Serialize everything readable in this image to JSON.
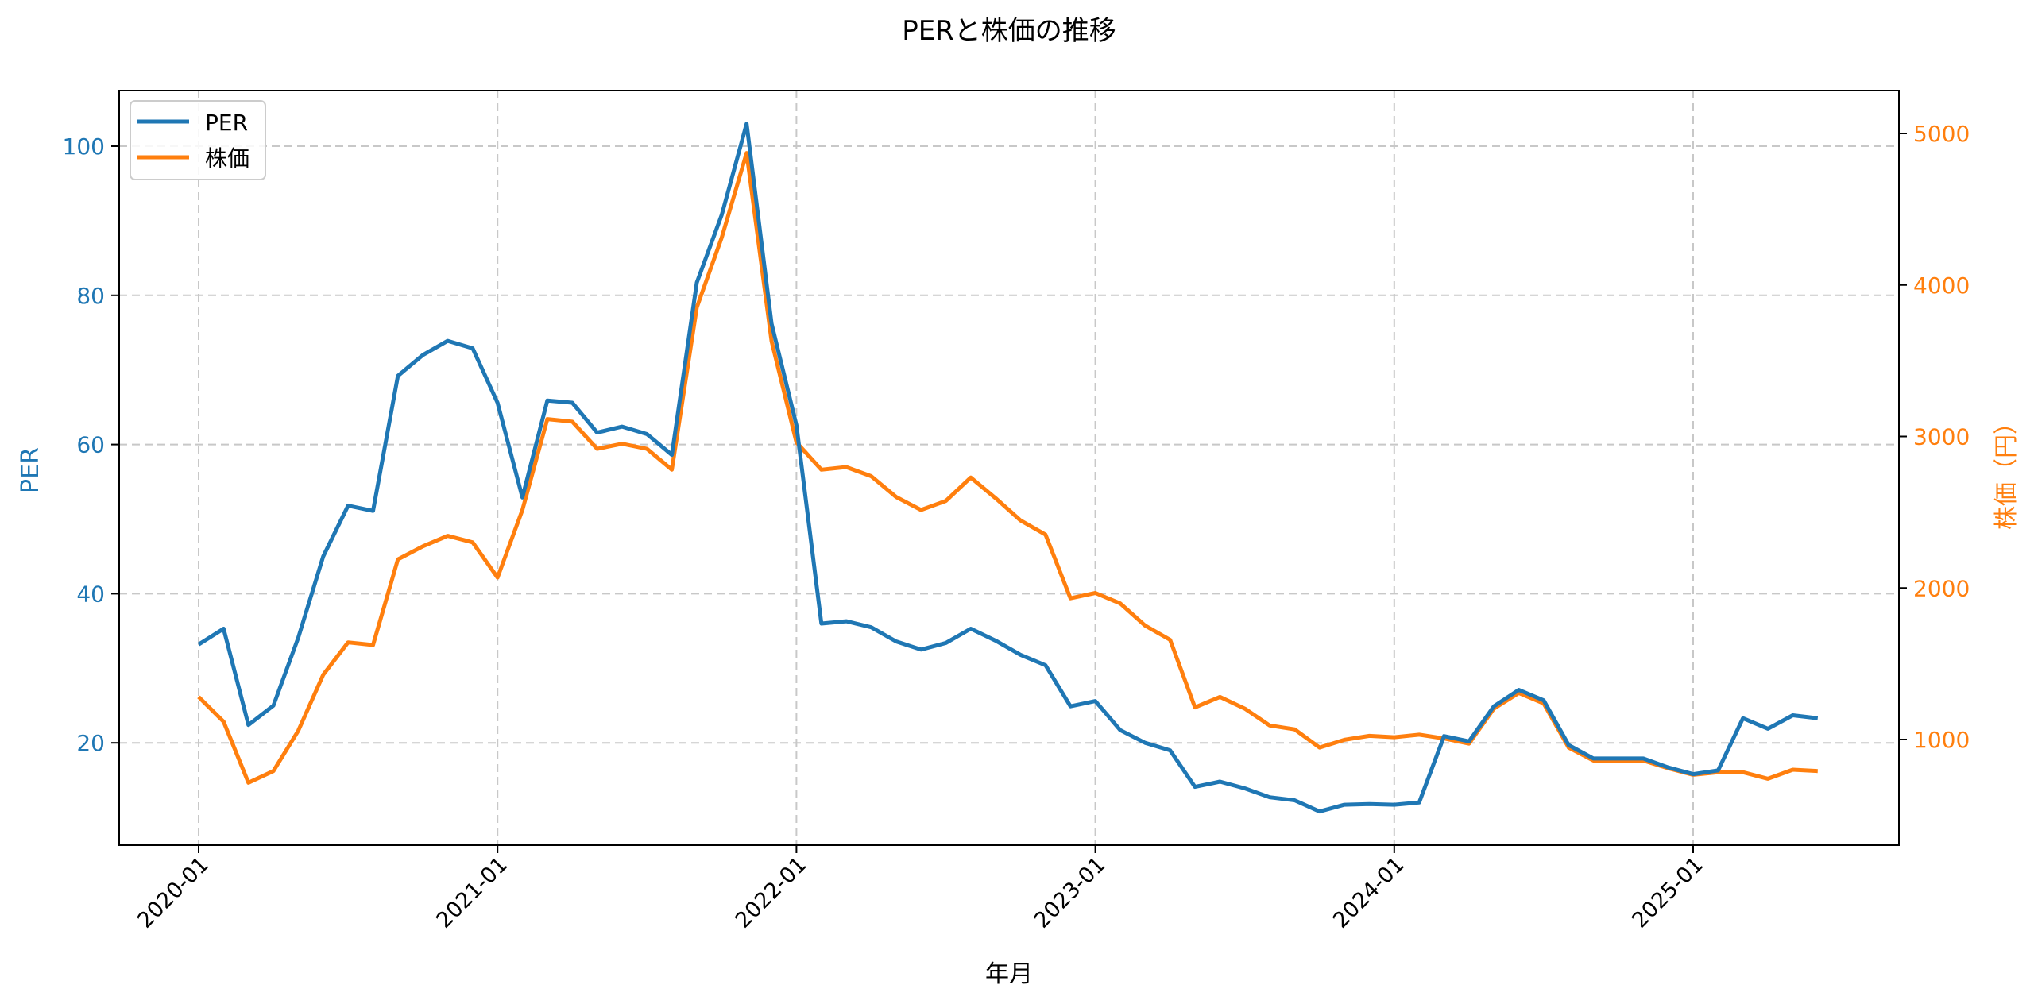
{
  "chart_data": {
    "type": "line",
    "title": "PERと株価の推移",
    "xlabel": "年月",
    "ylabel": "PER",
    "ylabel_right": "株価（円）",
    "ylim": [
      6,
      108
    ],
    "ylim_right": [
      300,
      5300
    ],
    "yticks": [
      20,
      40,
      60,
      80,
      100
    ],
    "yticks_right": [
      1000,
      2000,
      3000,
      4000,
      5000
    ],
    "xticks": [
      "2020-01",
      "2021-01",
      "2022-01",
      "2023-01",
      "2024-01",
      "2025-01"
    ],
    "grid": true,
    "legend_position": "upper left",
    "colors": {
      "PER": "#1f77b4",
      "株価": "#ff7f0e"
    },
    "x": [
      "2020-01",
      "2020-02",
      "2020-03",
      "2020-04",
      "2020-05",
      "2020-06",
      "2020-07",
      "2020-08",
      "2020-09",
      "2020-10",
      "2020-11",
      "2020-12",
      "2021-01",
      "2021-02",
      "2021-03",
      "2021-04",
      "2021-05",
      "2021-06",
      "2021-07",
      "2021-08",
      "2021-09",
      "2021-10",
      "2021-11",
      "2021-12",
      "2022-01",
      "2022-02",
      "2022-03",
      "2022-04",
      "2022-05",
      "2022-06",
      "2022-07",
      "2022-08",
      "2022-09",
      "2022-10",
      "2022-11",
      "2022-12",
      "2023-01",
      "2023-02",
      "2023-03",
      "2023-04",
      "2023-05",
      "2023-06",
      "2023-07",
      "2023-08",
      "2023-09",
      "2023-10",
      "2023-11",
      "2023-12",
      "2024-01",
      "2024-02",
      "2024-03",
      "2024-04",
      "2024-05",
      "2024-06",
      "2024-07",
      "2024-08",
      "2024-09",
      "2024-10",
      "2024-11",
      "2024-12",
      "2025-01",
      "2025-02",
      "2025-03",
      "2025-04",
      "2025-05",
      "2025-06"
    ],
    "series": [
      {
        "name": "PER",
        "axis": "left",
        "values": [
          33.2,
          35.3,
          22.4,
          25.0,
          34.1,
          45.0,
          51.8,
          51.1,
          69.2,
          72.0,
          73.9,
          72.9,
          65.6,
          52.9,
          65.9,
          65.6,
          61.6,
          62.4,
          61.4,
          58.6,
          81.7,
          90.8,
          103.0,
          76.2,
          62.6,
          36.0,
          36.3,
          35.5,
          33.6,
          32.5,
          33.4,
          35.3,
          33.7,
          31.8,
          30.4,
          24.9,
          25.6,
          21.7,
          20.0,
          19.0,
          14.1,
          14.8,
          13.9,
          12.7,
          12.3,
          10.8,
          11.7,
          11.8,
          11.7,
          12.0,
          20.9,
          20.2,
          24.9,
          27.1,
          25.7,
          19.7,
          17.9,
          17.9,
          17.9,
          16.7,
          15.8,
          16.3,
          23.3,
          21.9,
          23.7,
          23.3
        ]
      },
      {
        "name": "株価",
        "axis": "right",
        "values": [
          1281,
          1118,
          715,
          792,
          1058,
          1427,
          1641,
          1624,
          2189,
          2275,
          2344,
          2301,
          2069,
          2515,
          3115,
          3098,
          2918,
          2952,
          2918,
          2781,
          3852,
          4314,
          4871,
          3629,
          2961,
          2781,
          2798,
          2738,
          2601,
          2515,
          2575,
          2729,
          2592,
          2446,
          2352,
          1932,
          1967,
          1898,
          1752,
          1658,
          1212,
          1281,
          1204,
          1093,
          1067,
          947,
          998,
          1024,
          1015,
          1032,
          1007,
          973,
          1204,
          1307,
          1238,
          947,
          861,
          861,
          861,
          810,
          767,
          784,
          784,
          741,
          801,
          792
        ]
      }
    ]
  },
  "legend": {
    "items": [
      {
        "label": "PER"
      },
      {
        "label": "株価"
      }
    ]
  }
}
